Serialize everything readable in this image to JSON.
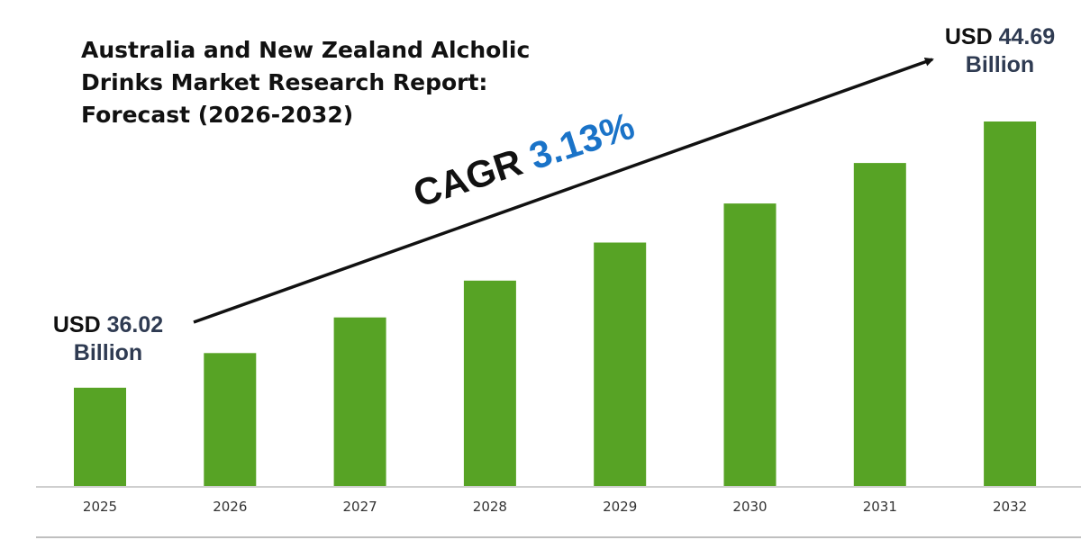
{
  "title_lines": [
    "Australia and New Zealand Alcholic",
    "Drinks Market Research Report:",
    "Forecast (2026-2032)"
  ],
  "start_callout": {
    "prefix": "USD",
    "value": "36.02",
    "unit": "Billion"
  },
  "end_callout": {
    "prefix": "USD",
    "value": "44.69",
    "unit": "Billion"
  },
  "cagr": {
    "label": "CAGR",
    "value": "3.13%"
  },
  "colors": {
    "bar": "#57a325",
    "axis": "#bfbfbf",
    "cagr_value": "#1a73c8",
    "callout_value": "#2f3b52"
  },
  "chart_data": {
    "type": "bar",
    "title": "Australia and New Zealand Alcholic Drinks Market Research Report: Forecast (2026-2032)",
    "categories": [
      "2025",
      "2026",
      "2027",
      "2028",
      "2029",
      "2030",
      "2031",
      "2032"
    ],
    "values": [
      36.02,
      37.15,
      38.31,
      39.51,
      40.75,
      42.02,
      43.34,
      44.69
    ],
    "xlabel": "",
    "ylabel": "",
    "ylim": [
      32.82,
      45.6
    ],
    "grid": false,
    "legend": "none"
  }
}
